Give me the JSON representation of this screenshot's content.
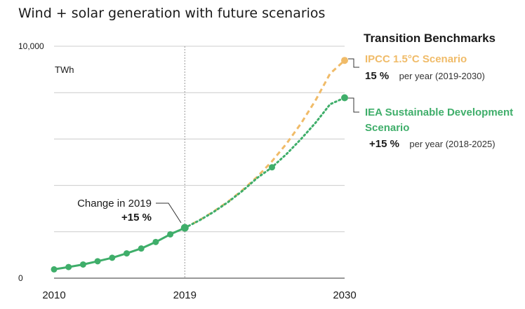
{
  "colors": {
    "historical": "#3fae6a",
    "ipcc": "#f0bb68",
    "iea": "#3fae6a",
    "grid": "#cccccc",
    "axis": "#333333"
  },
  "chart_data": {
    "type": "line",
    "title": "Wind + solar generation with future scenarios",
    "ylabel": "TWh",
    "ylim": [
      0,
      10000
    ],
    "xlim": [
      2010,
      2030
    ],
    "y_tick_labels": [
      {
        "value": 0,
        "label": "0"
      },
      {
        "value": 10000,
        "label": "10,000"
      }
    ],
    "grid_values": [
      2000,
      4000,
      6000,
      8000,
      10000
    ],
    "x_tick_labels": [
      {
        "value": 2010,
        "label": "2010"
      },
      {
        "value": 2019,
        "label": "2019"
      },
      {
        "value": 2030,
        "label": "2030"
      }
    ],
    "series": [
      {
        "key": "historical",
        "style": "solid",
        "x": [
          2010,
          2011,
          2012,
          2013,
          2014,
          2015,
          2016,
          2017,
          2018,
          2019
        ],
        "y": [
          380,
          480,
          590,
          730,
          880,
          1070,
          1280,
          1560,
          1890,
          2170
        ]
      },
      {
        "key": "ipcc",
        "style": "dashed",
        "x": [
          2019,
          2020,
          2021,
          2022,
          2023,
          2024,
          2025,
          2026,
          2027,
          2028,
          2029,
          2030
        ],
        "y": [
          2170,
          2500,
          2880,
          3310,
          3810,
          4380,
          5040,
          5800,
          6670,
          7670,
          8820,
          9390
        ],
        "end_marker": true
      },
      {
        "key": "iea",
        "style": "dotted",
        "x": [
          2019,
          2020,
          2021,
          2022,
          2023,
          2024,
          2025,
          2026,
          2027,
          2028,
          2029,
          2030
        ],
        "y": [
          2170,
          2490,
          2860,
          3290,
          3780,
          4330,
          4780,
          5350,
          6000,
          6700,
          7500,
          7780
        ],
        "mid_marker_x": 2025,
        "end_marker": true
      }
    ],
    "benchmarks": {
      "title": "Transition Benchmarks",
      "ipcc": {
        "name": "IPCC 1.5°C Scenario",
        "rate": "15 %",
        "note": "per year (2019-2030)"
      },
      "iea": {
        "name_line1": "IEA Sustainable Development",
        "name_line2": "Scenario",
        "rate": "+15 %",
        "note": "per year (2018-2025)"
      }
    },
    "annotation": {
      "x": 2019,
      "line1": "Change in 2019",
      "line2": "+15 %"
    }
  }
}
